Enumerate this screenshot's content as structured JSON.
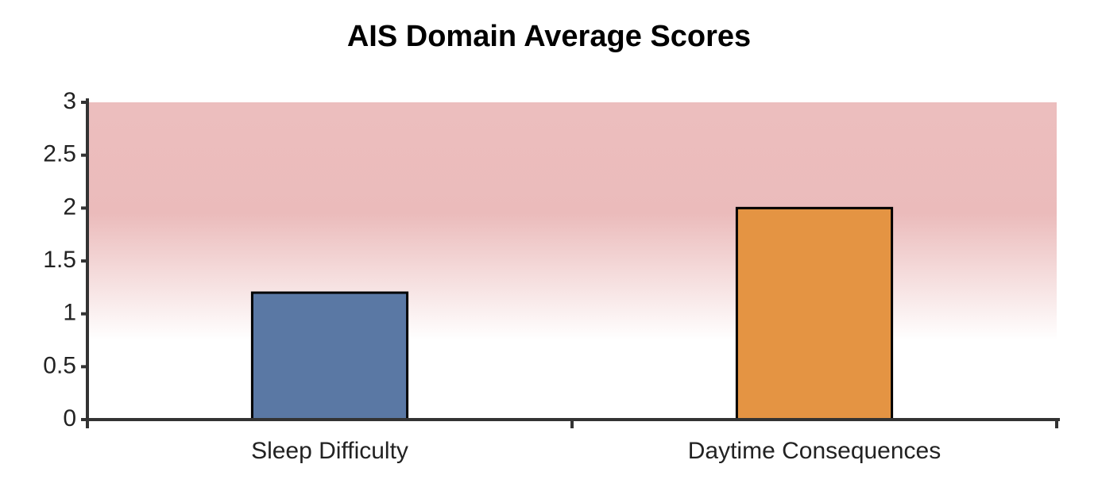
{
  "chart_data": {
    "type": "bar",
    "title": "AIS Domain Average Scores",
    "categories": [
      "Sleep Difficulty",
      "Daytime Consequences"
    ],
    "values": [
      1.2,
      2.0
    ],
    "colors": [
      "#5a78a4",
      "#e49443"
    ],
    "ylim": [
      0,
      3
    ],
    "yticks": [
      0,
      0.5,
      1,
      1.5,
      2,
      2.5,
      3
    ],
    "grid": false
  }
}
